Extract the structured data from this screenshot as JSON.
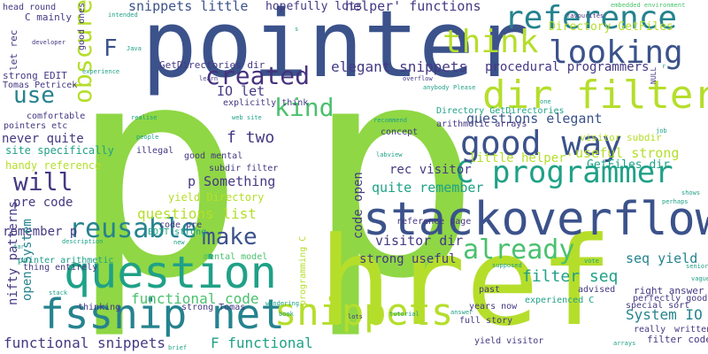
{
  "palette": {
    "yellowgreen": "#b5de2b",
    "lime": "#8fd744",
    "green": "#4ac16d",
    "teal": "#1fa187",
    "cyan": "#25838e",
    "blue": "#3b528b",
    "navy": "#443983",
    "purple": "#46327e",
    "violet": "#440154",
    "mint": "#6ece58"
  },
  "words": [
    {
      "text": "p",
      "color": "lime"
    },
    {
      "text": "p",
      "color": "lime"
    },
    {
      "text": "href",
      "color": "yellowgreen"
    },
    {
      "text": "pointer",
      "color": "blue"
    },
    {
      "text": "stackoverflow",
      "color": "blue"
    },
    {
      "text": "question",
      "color": "teal"
    },
    {
      "text": "fssnip net",
      "color": "cyan"
    },
    {
      "text": "reference",
      "color": "cyan"
    },
    {
      "text": "dir filter",
      "color": "yellowgreen"
    },
    {
      "text": "C programmer",
      "color": "teal"
    },
    {
      "text": "good way",
      "color": "blue"
    },
    {
      "text": "snippets",
      "color": "yellowgreen"
    },
    {
      "text": "think",
      "color": "yellowgreen"
    },
    {
      "text": "looking",
      "color": "blue"
    },
    {
      "text": "created",
      "color": "purple"
    },
    {
      "text": "reusable",
      "color": "cyan"
    },
    {
      "text": "make",
      "color": "blue"
    },
    {
      "text": "already",
      "color": "green"
    },
    {
      "text": "obscure",
      "color": "yellowgreen"
    },
    {
      "text": "kind",
      "color": "green"
    },
    {
      "text": "use",
      "color": "cyan"
    },
    {
      "text": "will",
      "color": "navy"
    },
    {
      "text": "F",
      "color": "blue"
    },
    {
      "text": "elegant snippets",
      "color": "navy"
    },
    {
      "text": "procedural programmers",
      "color": "navy"
    },
    {
      "text": "snippets little",
      "color": "blue"
    },
    {
      "text": "helper' functions",
      "color": "navy"
    },
    {
      "text": "questions elegant",
      "color": "blue"
    },
    {
      "text": "useful strong",
      "color": "yellowgreen"
    },
    {
      "text": "f two",
      "color": "navy"
    },
    {
      "text": "questions list",
      "color": "yellowgreen"
    },
    {
      "text": "p Something",
      "color": "navy"
    },
    {
      "text": "yield Directory",
      "color": "yellowgreen"
    },
    {
      "text": "filter seq",
      "color": "teal"
    },
    {
      "text": "seq yield",
      "color": "cyan"
    },
    {
      "text": "System IO",
      "color": "cyan"
    },
    {
      "text": "functional code",
      "color": "green"
    },
    {
      "text": "functional snippets",
      "color": "navy"
    },
    {
      "text": "F functional",
      "color": "teal"
    },
    {
      "text": "never quite",
      "color": "navy"
    },
    {
      "text": "pre code",
      "color": "navy"
    },
    {
      "text": "remember p",
      "color": "navy"
    },
    {
      "text": "nifty patterns",
      "color": "navy"
    },
    {
      "text": "open System",
      "color": "cyan"
    },
    {
      "text": "code open",
      "color": "navy"
    },
    {
      "text": "visitor dir",
      "color": "navy"
    },
    {
      "text": "strong useful",
      "color": "navy"
    },
    {
      "text": "rec visitor",
      "color": "navy"
    },
    {
      "text": "quite remember",
      "color": "teal"
    },
    {
      "text": "little helper'",
      "color": "yellowgreen"
    },
    {
      "text": "GetFiles dir",
      "color": "teal"
    },
    {
      "text": "IO let",
      "color": "navy"
    },
    {
      "text": "Directory GetFiles",
      "color": "yellowgreen"
    },
    {
      "text": "GetDirectories dir",
      "color": "navy"
    },
    {
      "text": "hopefully lots",
      "color": "navy"
    },
    {
      "text": "C mainly",
      "color": "navy"
    },
    {
      "text": "let rec",
      "color": "navy"
    },
    {
      "text": "strong EDIT",
      "color": "navy"
    },
    {
      "text": "Tomas Petricek",
      "color": "navy"
    },
    {
      "text": "comfortable",
      "color": "navy"
    },
    {
      "text": "pointers etc",
      "color": "navy"
    },
    {
      "text": "site specifically",
      "color": "teal"
    },
    {
      "text": "handy reference",
      "color": "yellowgreen"
    },
    {
      "text": "pointer arithmetic",
      "color": "teal"
    },
    {
      "text": "thing entirely",
      "color": "navy"
    },
    {
      "text": "explicitly think",
      "color": "navy"
    },
    {
      "text": "Directory GetDirectories",
      "color": "teal"
    },
    {
      "text": "arithmetic arrays",
      "color": "navy"
    },
    {
      "text": "concept",
      "color": "navy"
    },
    {
      "text": "visitor subdir",
      "color": "yellowgreen"
    },
    {
      "text": "good mental",
      "color": "navy"
    },
    {
      "text": "illegal",
      "color": "navy"
    },
    {
      "text": "subdir filter",
      "color": "navy"
    },
    {
      "text": "code pre",
      "color": "navy"
    },
    {
      "text": "EDIT strong",
      "color": "teal"
    },
    {
      "text": "mental model",
      "color": "green"
    },
    {
      "text": "programming C",
      "color": "yellowgreen"
    },
    {
      "text": "strong Tomas",
      "color": "navy"
    },
    {
      "text": "thinking",
      "color": "navy"
    },
    {
      "text": "reference page",
      "color": "navy"
    },
    {
      "text": "experienced C",
      "color": "teal"
    },
    {
      "text": "years now",
      "color": "navy"
    },
    {
      "text": "full story",
      "color": "navy"
    },
    {
      "text": "yield visitor",
      "color": "navy"
    },
    {
      "text": "past",
      "color": "navy"
    },
    {
      "text": "advised",
      "color": "navy"
    },
    {
      "text": "right answer",
      "color": "navy"
    },
    {
      "text": "perfectly good",
      "color": "navy"
    },
    {
      "text": "special sort",
      "color": "navy"
    },
    {
      "text": "really",
      "color": "navy"
    },
    {
      "text": "written",
      "color": "navy"
    },
    {
      "text": "filter code",
      "color": "navy"
    },
    {
      "text": "head round",
      "color": "navy"
    },
    {
      "text": "good ones",
      "color": "navy"
    },
    {
      "text": "developer",
      "color": "navy"
    },
    {
      "text": "intended",
      "color": "teal"
    },
    {
      "text": "favourites",
      "color": "navy"
    },
    {
      "text": "embedded environment",
      "color": "green"
    },
    {
      "text": "NULL",
      "color": "navy"
    },
    {
      "text": "learn",
      "color": "navy"
    },
    {
      "text": "web site",
      "color": "teal"
    },
    {
      "text": "recommend",
      "color": "teal"
    },
    {
      "text": "labview",
      "color": "teal"
    },
    {
      "text": "overflow",
      "color": "navy"
    },
    {
      "text": "Please",
      "color": "teal"
    },
    {
      "text": "anybody",
      "color": "teal"
    },
    {
      "text": "realise",
      "color": "teal"
    },
    {
      "text": "people",
      "color": "teal"
    },
    {
      "text": "job",
      "color": "teal"
    },
    {
      "text": "shows",
      "color": "teal"
    },
    {
      "text": "perhaps",
      "color": "teal"
    },
    {
      "text": "senior",
      "color": "teal"
    },
    {
      "text": "vague",
      "color": "teal"
    },
    {
      "text": "vote",
      "color": "teal"
    },
    {
      "text": "supposed",
      "color": "teal"
    },
    {
      "text": "lots",
      "color": "navy"
    },
    {
      "text": "tutorial",
      "color": "teal"
    },
    {
      "text": "answer",
      "color": "teal"
    },
    {
      "text": "book",
      "color": "teal"
    },
    {
      "text": "wondering",
      "color": "teal"
    },
    {
      "text": "description",
      "color": "teal"
    },
    {
      "text": "stack",
      "color": "teal"
    },
    {
      "text": "far",
      "color": "teal"
    },
    {
      "text": "brief",
      "color": "teal"
    },
    {
      "text": "arrays",
      "color": "teal"
    },
    {
      "text": "Java",
      "color": "teal"
    },
    {
      "text": "experience",
      "color": "teal"
    },
    {
      "text": "one",
      "color": "teal"
    },
    {
      "text": "new",
      "color": "teal"
    },
    {
      "text": "s",
      "color": "teal"
    },
    {
      "text": "r",
      "color": "teal"
    }
  ]
}
